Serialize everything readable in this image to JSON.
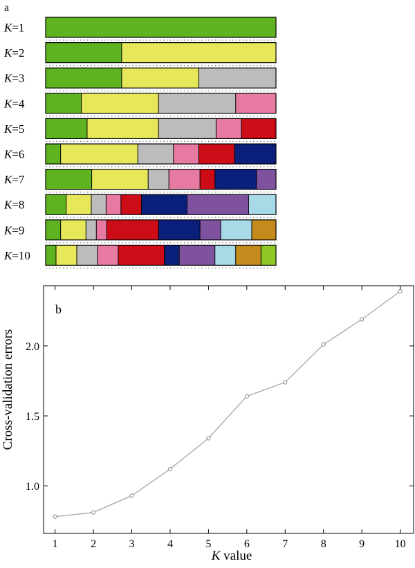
{
  "colors": {
    "green": "#5fb320",
    "yellow": "#e6e85a",
    "gray": "#bcbcbc",
    "pink": "#e77aa2",
    "red": "#cc0c17",
    "navy": "#0a1f7a",
    "purple": "#7f52a0",
    "lightblue": "#a8d9e6",
    "gold": "#c48b1c",
    "lime": "#8fc825",
    "dots": "#777777",
    "line": "#a6a6a6",
    "marker": "#888888"
  },
  "chart_data": [
    {
      "type": "bar",
      "panel_label": "a",
      "k_symbol": "K",
      "rows": [
        {
          "k": "=1",
          "segments": [
            {
              "color": "green",
              "value": 1.0
            }
          ]
        },
        {
          "k": "=2",
          "segments": [
            {
              "color": "green",
              "value": 0.33
            },
            {
              "color": "yellow",
              "value": 0.67
            }
          ]
        },
        {
          "k": "=3",
          "segments": [
            {
              "color": "green",
              "value": 0.33
            },
            {
              "color": "yellow",
              "value": 0.335
            },
            {
              "color": "gray",
              "value": 0.335
            }
          ]
        },
        {
          "k": "=4",
          "segments": [
            {
              "color": "green",
              "value": 0.155
            },
            {
              "color": "yellow",
              "value": 0.335
            },
            {
              "color": "gray",
              "value": 0.335
            },
            {
              "color": "pink",
              "value": 0.175
            }
          ]
        },
        {
          "k": "=5",
          "segments": [
            {
              "color": "green",
              "value": 0.18
            },
            {
              "color": "yellow",
              "value": 0.31
            },
            {
              "color": "gray",
              "value": 0.25
            },
            {
              "color": "pink",
              "value": 0.11
            },
            {
              "color": "red",
              "value": 0.15
            }
          ]
        },
        {
          "k": "=6",
          "segments": [
            {
              "color": "green",
              "value": 0.065
            },
            {
              "color": "yellow",
              "value": 0.335
            },
            {
              "color": "gray",
              "value": 0.155
            },
            {
              "color": "pink",
              "value": 0.11
            },
            {
              "color": "red",
              "value": 0.155
            },
            {
              "color": "navy",
              "value": 0.18
            }
          ]
        },
        {
          "k": "=7",
          "segments": [
            {
              "color": "green",
              "value": 0.2
            },
            {
              "color": "yellow",
              "value": 0.245
            },
            {
              "color": "gray",
              "value": 0.09
            },
            {
              "color": "pink",
              "value": 0.135
            },
            {
              "color": "red",
              "value": 0.065
            },
            {
              "color": "navy",
              "value": 0.18
            },
            {
              "color": "purple",
              "value": 0.085
            }
          ]
        },
        {
          "k": "=8",
          "segments": [
            {
              "color": "green",
              "value": 0.09
            },
            {
              "color": "yellow",
              "value": 0.11
            },
            {
              "color": "gray",
              "value": 0.065
            },
            {
              "color": "pink",
              "value": 0.065
            },
            {
              "color": "red",
              "value": 0.09
            },
            {
              "color": "navy",
              "value": 0.2
            },
            {
              "color": "purple",
              "value": 0.27
            },
            {
              "color": "lightblue",
              "value": 0.12
            }
          ]
        },
        {
          "k": "=9",
          "segments": [
            {
              "color": "green",
              "value": 0.065
            },
            {
              "color": "yellow",
              "value": 0.11
            },
            {
              "color": "gray",
              "value": 0.045
            },
            {
              "color": "pink",
              "value": 0.045
            },
            {
              "color": "red",
              "value": 0.225
            },
            {
              "color": "navy",
              "value": 0.18
            },
            {
              "color": "purple",
              "value": 0.09
            },
            {
              "color": "lightblue",
              "value": 0.135
            },
            {
              "color": "gold",
              "value": 0.105
            }
          ]
        },
        {
          "k": "=10",
          "segments": [
            {
              "color": "green",
              "value": 0.045
            },
            {
              "color": "yellow",
              "value": 0.09
            },
            {
              "color": "gray",
              "value": 0.09
            },
            {
              "color": "pink",
              "value": 0.09
            },
            {
              "color": "red",
              "value": 0.2
            },
            {
              "color": "navy",
              "value": 0.065
            },
            {
              "color": "purple",
              "value": 0.155
            },
            {
              "color": "lightblue",
              "value": 0.09
            },
            {
              "color": "gold",
              "value": 0.11
            },
            {
              "color": "lime",
              "value": 0.065
            }
          ]
        }
      ]
    },
    {
      "type": "line",
      "panel_label": "b",
      "xlabel_symbol": "K",
      "xlabel_rest": " value",
      "ylabel": "Cross-validation errors",
      "x": [
        1,
        2,
        3,
        4,
        5,
        6,
        7,
        8,
        9,
        10
      ],
      "y": [
        0.78,
        0.81,
        0.93,
        1.12,
        1.34,
        1.64,
        1.74,
        2.01,
        2.19,
        2.39
      ],
      "xlim": [
        0.7,
        10.35
      ],
      "ylim": [
        0.66,
        2.43
      ],
      "xticks": [
        "1",
        "2",
        "3",
        "4",
        "5",
        "6",
        "7",
        "8",
        "9",
        "10"
      ],
      "yticks": [
        "1.0",
        "1.5",
        "2.0"
      ],
      "grid": false,
      "legend": "none"
    }
  ]
}
